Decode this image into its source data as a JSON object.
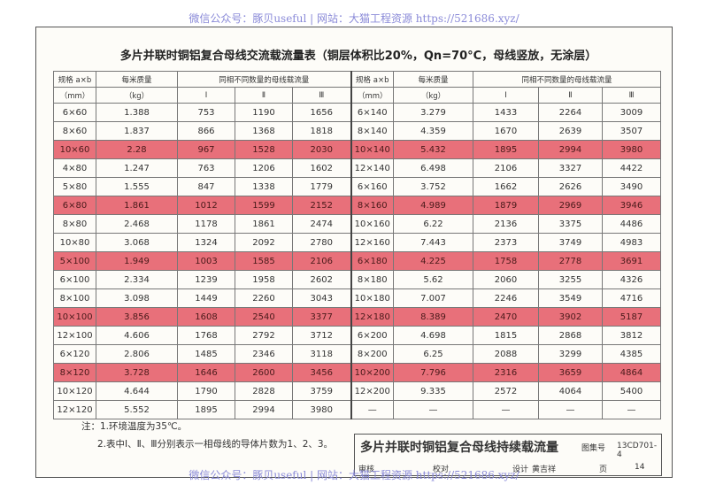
{
  "watermark_top": "微信公众号：豚贝useful | 网站：大猫工程资源 https://521686.xyz/",
  "title": "多片并联时铜铝复合母线交流载流量表（铜层体积比20%，Qn=70°C，母线竖放，无涂层）",
  "table": {
    "header": {
      "spec": "规格 a×b",
      "spec_unit": "（mm）",
      "mass": "每米质量",
      "mass_unit": "（kg）",
      "current": "同相不同数量的母线载流量",
      "sub": [
        "Ⅰ",
        "Ⅱ",
        "Ⅲ"
      ]
    },
    "highlighted_rows": [
      2,
      5,
      8,
      11,
      14
    ],
    "left_rows": [
      [
        "6×60",
        "1.388",
        "753",
        "1190",
        "1656"
      ],
      [
        "8×60",
        "1.837",
        "866",
        "1368",
        "1818"
      ],
      [
        "10×60",
        "2.28",
        "967",
        "1528",
        "2030"
      ],
      [
        "4×80",
        "1.247",
        "763",
        "1206",
        "1602"
      ],
      [
        "5×80",
        "1.555",
        "847",
        "1338",
        "1779"
      ],
      [
        "6×80",
        "1.861",
        "1012",
        "1599",
        "2152"
      ],
      [
        "8×80",
        "2.468",
        "1178",
        "1861",
        "2474"
      ],
      [
        "10×80",
        "3.068",
        "1324",
        "2092",
        "2780"
      ],
      [
        "5×100",
        "1.949",
        "1003",
        "1585",
        "2106"
      ],
      [
        "6×100",
        "2.334",
        "1239",
        "1958",
        "2602"
      ],
      [
        "8×100",
        "3.098",
        "1449",
        "2260",
        "3043"
      ],
      [
        "10×100",
        "3.856",
        "1608",
        "2540",
        "3377"
      ],
      [
        "12×100",
        "4.606",
        "1768",
        "2792",
        "3712"
      ],
      [
        "6×120",
        "2.806",
        "1485",
        "2346",
        "3118"
      ],
      [
        "8×120",
        "3.728",
        "1646",
        "2600",
        "3456"
      ],
      [
        "10×120",
        "4.644",
        "1790",
        "2828",
        "3759"
      ],
      [
        "12×120",
        "5.552",
        "1895",
        "2994",
        "3980"
      ]
    ],
    "right_rows": [
      [
        "6×140",
        "3.279",
        "1433",
        "2264",
        "3009"
      ],
      [
        "8×140",
        "4.359",
        "1670",
        "2639",
        "3507"
      ],
      [
        "10×140",
        "5.432",
        "1895",
        "2994",
        "3980"
      ],
      [
        "12×140",
        "6.498",
        "2106",
        "3327",
        "4422"
      ],
      [
        "6×160",
        "3.752",
        "1662",
        "2626",
        "3490"
      ],
      [
        "8×160",
        "4.989",
        "1879",
        "2969",
        "3946"
      ],
      [
        "10×160",
        "6.22",
        "2136",
        "3375",
        "4486"
      ],
      [
        "12×160",
        "7.443",
        "2373",
        "3749",
        "4983"
      ],
      [
        "6×180",
        "4.225",
        "1758",
        "2778",
        "3691"
      ],
      [
        "8×180",
        "5.62",
        "2060",
        "3255",
        "4326"
      ],
      [
        "10×180",
        "7.007",
        "2246",
        "3549",
        "4716"
      ],
      [
        "12×180",
        "8.389",
        "2470",
        "3902",
        "5187"
      ],
      [
        "6×200",
        "4.698",
        "1815",
        "2868",
        "3812"
      ],
      [
        "8×200",
        "6.25",
        "2088",
        "3299",
        "4385"
      ],
      [
        "10×200",
        "7.796",
        "2316",
        "3659",
        "4864"
      ],
      [
        "12×200",
        "9.335",
        "2572",
        "4064",
        "5400"
      ],
      [
        "—",
        "—",
        "—",
        "—",
        "—"
      ]
    ]
  },
  "notes": [
    "注：1.环境温度为35℃。",
    "2.表中Ⅰ、Ⅱ、Ⅲ分别表示一相母线的导体片数为1、2、3。"
  ],
  "title_block": {
    "name": "多片并联时铜铝复合母线持续载流量",
    "atlas_label": "图集号",
    "atlas_no": "13CD701-4",
    "review": "审核",
    "check": "校对",
    "design": "设计",
    "designer": "黄吉祥",
    "page_label": "页",
    "page_no": "14"
  },
  "watermark_bottom": "微信公众号：豚贝useful | 网站：大猫工程资源 https://521686.xyz/"
}
